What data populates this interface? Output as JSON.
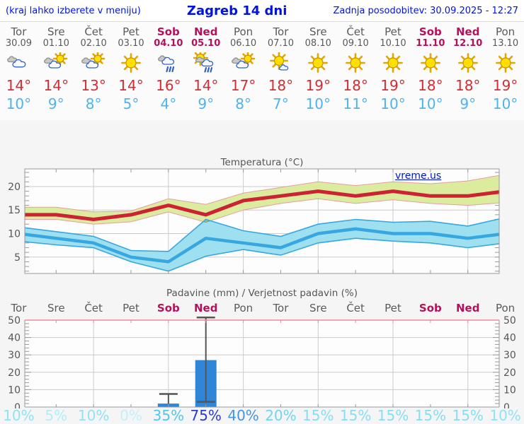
{
  "header": {
    "left_note": "(kraj lahko izberete v meniju)",
    "title": "Zagreb 14 dni",
    "updated": "Zadnja posodobitev: 30.09.2025 - 12:27"
  },
  "watermark": "vreme.us",
  "colors": {
    "header_text": "#0013e0",
    "weekday": "#5a5a5a",
    "weekend": "#b5105a",
    "tmax_text": "#d62b33",
    "tmin_text": "#4fb2ef",
    "max_band": "#dcec9f",
    "max_band_edge": "#e89ca0",
    "max_line": "#cc2233",
    "min_band": "#9fe0f0",
    "min_line": "#36a7e0",
    "bar": "#2f86d6",
    "whisker": "#555555",
    "grid": "#cccccc",
    "axis": "#999999",
    "plot_bg": "#fdfdfd",
    "precip_top_border": "#ee8899",
    "tick_label": "#555555"
  },
  "days": [
    {
      "name": "Tor",
      "date": "30.09",
      "weekend": false,
      "icon": "cloudy",
      "tmax": "14°",
      "tmin": "10°",
      "precip_prob": "10%",
      "prob_color": "#8ee3f4"
    },
    {
      "name": "Sre",
      "date": "01.10",
      "weekend": false,
      "icon": "sun-cloud",
      "tmax": "14°",
      "tmin": "9°",
      "precip_prob": "5%",
      "prob_color": "#b3edf8"
    },
    {
      "name": "Čet",
      "date": "02.10",
      "weekend": false,
      "icon": "sun-cloud",
      "tmax": "13°",
      "tmin": "8°",
      "precip_prob": "10%",
      "prob_color": "#8ee3f4"
    },
    {
      "name": "Pet",
      "date": "03.10",
      "weekend": false,
      "icon": "sunny",
      "tmax": "14°",
      "tmin": "5°",
      "precip_prob": "0%",
      "prob_color": "#c2f0fa"
    },
    {
      "name": "Sob",
      "date": "04.10",
      "weekend": true,
      "icon": "rain",
      "tmax": "16°",
      "tmin": "4°",
      "precip_prob": "35%",
      "prob_color": "#4fc7ee"
    },
    {
      "name": "Ned",
      "date": "05.10",
      "weekend": true,
      "icon": "sun-rain",
      "tmax": "14°",
      "tmin": "9°",
      "precip_prob": "75%",
      "prob_color": "#2a3ad0"
    },
    {
      "name": "Pon",
      "date": "06.10",
      "weekend": false,
      "icon": "sun-cloud",
      "tmax": "17°",
      "tmin": "8°",
      "precip_prob": "40%",
      "prob_color": "#4495e3"
    },
    {
      "name": "Tor",
      "date": "07.10",
      "weekend": false,
      "icon": "sun-small-cloud",
      "tmax": "18°",
      "tmin": "7°",
      "precip_prob": "20%",
      "prob_color": "#6fd6f1"
    },
    {
      "name": "Sre",
      "date": "08.10",
      "weekend": false,
      "icon": "sunny",
      "tmax": "19°",
      "tmin": "10°",
      "precip_prob": "15%",
      "prob_color": "#85def3"
    },
    {
      "name": "Čet",
      "date": "09.10",
      "weekend": false,
      "icon": "sunny",
      "tmax": "18°",
      "tmin": "11°",
      "precip_prob": "15%",
      "prob_color": "#85def3"
    },
    {
      "name": "Pet",
      "date": "10.10",
      "weekend": false,
      "icon": "sunny",
      "tmax": "19°",
      "tmin": "10°",
      "precip_prob": "15%",
      "prob_color": "#85def3"
    },
    {
      "name": "Sob",
      "date": "11.10",
      "weekend": true,
      "icon": "sunny",
      "tmax": "18°",
      "tmin": "10°",
      "precip_prob": "15%",
      "prob_color": "#85def3"
    },
    {
      "name": "Ned",
      "date": "12.10",
      "weekend": true,
      "icon": "sunny",
      "tmax": "18°",
      "tmin": "9°",
      "precip_prob": "15%",
      "prob_color": "#85def3"
    },
    {
      "name": "Pon",
      "date": "13.10",
      "weekend": false,
      "icon": "sunny",
      "tmax": "19°",
      "tmin": "10°",
      "precip_prob": "10%",
      "prob_color": "#8ee3f4"
    }
  ],
  "chart_data": [
    {
      "type": "line",
      "title": "Temperatura (°C)",
      "categories": [
        "30.09",
        "01.10",
        "02.10",
        "03.10",
        "04.10",
        "05.10",
        "06.10",
        "07.10",
        "08.10",
        "09.10",
        "10.10",
        "11.10",
        "12.10",
        "13.10"
      ],
      "ylim": [
        1.5,
        23.75
      ],
      "yticks": [
        5,
        10,
        15,
        20
      ],
      "grid": true,
      "series": [
        {
          "name": "tmax",
          "values": [
            14,
            14,
            13,
            14,
            16,
            14,
            17,
            18,
            19,
            18,
            19,
            18,
            18,
            19
          ]
        },
        {
          "name": "tmax_band_upper",
          "values": [
            15.6,
            15.6,
            14.6,
            14.8,
            17.4,
            16.2,
            18.6,
            19.8,
            21.0,
            20.2,
            21.0,
            20.6,
            21.2,
            22.6
          ]
        },
        {
          "name": "tmax_band_lower",
          "values": [
            13.0,
            13.0,
            12.0,
            12.5,
            14.6,
            12.4,
            15.0,
            16.4,
            17.4,
            16.4,
            17.2,
            16.4,
            16.0,
            16.6
          ]
        },
        {
          "name": "tmin",
          "values": [
            10,
            9,
            8,
            5,
            4,
            9,
            8,
            7,
            10,
            11,
            10,
            10,
            9,
            10
          ]
        },
        {
          "name": "tmin_band_upper",
          "values": [
            11.4,
            10.4,
            9.4,
            6.4,
            6.2,
            13.0,
            10.6,
            9.4,
            12.0,
            13.0,
            12.4,
            12.6,
            11.6,
            13.4
          ]
        },
        {
          "name": "tmin_band_lower",
          "values": [
            8.4,
            7.6,
            7.0,
            4.0,
            2.0,
            5.2,
            6.6,
            5.4,
            8.0,
            9.0,
            8.4,
            8.0,
            7.0,
            8.0
          ]
        }
      ]
    },
    {
      "type": "bar",
      "title": "Padavine (mm) / Verjetnost padavin (%)",
      "categories": [
        "Tor",
        "Sre",
        "Čet",
        "Pet",
        "Sob",
        "Ned",
        "Pon",
        "Tor",
        "Sre",
        "Čet",
        "Pet",
        "Sob",
        "Ned",
        "Pon"
      ],
      "ylim": [
        0,
        50
      ],
      "yticks": [
        0,
        10,
        20,
        30,
        40,
        50
      ],
      "grid": true,
      "values_mm": [
        0,
        0,
        0,
        0,
        2,
        27,
        0,
        0,
        0,
        0,
        0,
        0,
        0,
        0
      ],
      "whiskers": [
        null,
        null,
        null,
        null,
        {
          "low": 2,
          "high": 7.5,
          "caps": [
            "high"
          ]
        },
        {
          "low": 3,
          "high": 51.5,
          "caps": [
            "low",
            "high"
          ]
        },
        null,
        null,
        null,
        null,
        null,
        null,
        null,
        null
      ],
      "probabilities_pct": [
        10,
        5,
        10,
        0,
        35,
        75,
        40,
        20,
        15,
        15,
        15,
        15,
        15,
        10
      ]
    }
  ]
}
